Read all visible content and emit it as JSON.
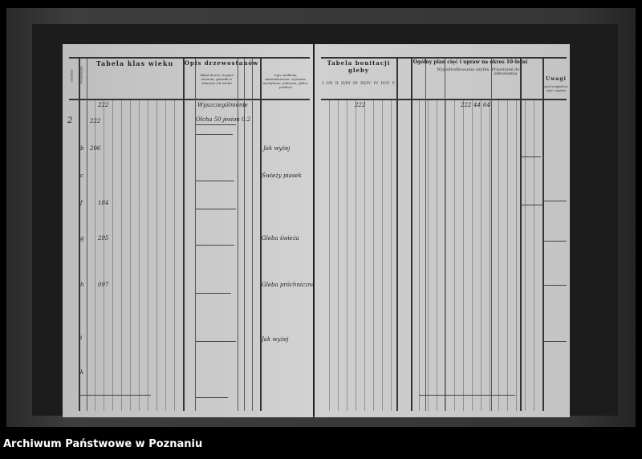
{
  "left_page": {
    "headers": {
      "age_classes": "Tabela klas wieku",
      "stand_description": "Opis drzewostanów",
      "compartment": "Oddział",
      "subcompartment": "Pododdział",
      "species_comp": "Skład drzew, stopień zwarcia, gatunki w zakresie ich wieku",
      "site_desc": "Opis siedliska, ukształtowania, wystawa, nachylenie, pokrywa, gleba, podłoże"
    },
    "entries": [
      {
        "sub": "",
        "value": "222",
        "note": "Wyszczególnienie"
      },
      {
        "sub": "2",
        "value": "222",
        "note": "Olcha 50 jesion 0.2"
      },
      {
        "sub": "b",
        "value": "206",
        "note": "Jak wyżej"
      },
      {
        "sub": "c",
        "value": "",
        "note": "Świeży piasek"
      },
      {
        "sub": "f",
        "value": "184",
        "note": ""
      },
      {
        "sub": "g",
        "value": "295",
        "note": "Gleba świeża"
      },
      {
        "sub": "h",
        "value": "097",
        "note": "Gleba próchniczna"
      },
      {
        "sub": "i",
        "value": "",
        "note": "Jak wyżej"
      },
      {
        "sub": "k",
        "value": "",
        "note": ""
      }
    ]
  },
  "right_page": {
    "headers": {
      "soil_table": "Tabela bonitacji gleby",
      "general_plan": "Ogólny plan cięć i upraw na okres 10-letni",
      "usage": "Wypodrodkowanie użytku",
      "renewal": "Przestrzeń do odnowienia",
      "remarks": "Uwagi",
      "remarks_sub": "pod względem cięć i upraw",
      "soil_classes": [
        "I",
        "I/II",
        "II",
        "II/III",
        "III",
        "III/IV",
        "IV",
        "IV/V",
        "V"
      ]
    },
    "top_values": [
      "222",
      "222",
      "44",
      "64"
    ]
  },
  "caption": "Archiwum Państwowe w Poznaniu"
}
